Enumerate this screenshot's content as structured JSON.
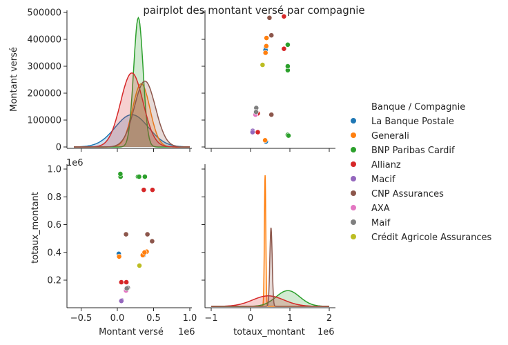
{
  "chart_data": {
    "type": "scatter",
    "title": "pairplot des montant versé par compagnie",
    "variables": [
      "Montant versé",
      "totaux_montant"
    ],
    "offset_label": "1e6",
    "legend": {
      "title": "Banque / Compagnie",
      "placement": "right"
    },
    "ticks": {
      "montant_x": [
        "−0.5",
        "0.0",
        "0.5",
        "1.0"
      ],
      "montant_y": [
        "0",
        "100000",
        "200000",
        "300000",
        "400000",
        "500000"
      ],
      "totaux_x": [
        "−1",
        "0",
        "1",
        "2"
      ],
      "totaux_y": [
        "0.2",
        "0.4",
        "0.6",
        "0.8",
        "1.0"
      ]
    },
    "series": [
      {
        "name": "La Banque Postale",
        "color": "#1f77b4",
        "points": [
          [
            20000,
            390000
          ],
          [
            370000,
            390000
          ],
          [
            360000,
            380000
          ]
        ],
        "kde": {
          "mu": 200000,
          "sigma": 230000,
          "peak": 120000
        }
      },
      {
        "name": "Generali",
        "color": "#ff7f0e",
        "points": [
          [
            25000,
            370000
          ],
          [
            405000,
            405000
          ],
          [
            350000,
            380000
          ],
          [
            375000,
            400000
          ]
        ],
        "kde": {
          "mu": 330000,
          "sigma": 120000,
          "peak": 235000
        },
        "diag_kde": {
          "mu": 370000,
          "sigma": 18000,
          "peak": 1.0
        }
      },
      {
        "name": "BNP Paribas Cardif",
        "color": "#2ca02c",
        "points": [
          [
            45000,
            945000
          ],
          [
            285000,
            945000
          ],
          [
            300000,
            945000
          ],
          [
            380000,
            945000
          ],
          [
            42000,
            965000
          ]
        ],
        "kde": {
          "mu": 290000,
          "sigma": 65000,
          "peak": 480000
        },
        "diag_kde": {
          "mu": 950000,
          "sigma": 300000,
          "peak": 0.12
        }
      },
      {
        "name": "Allianz",
        "color": "#d62728",
        "points": [
          [
            55000,
            185000
          ],
          [
            125000,
            185000
          ],
          [
            365000,
            850000
          ],
          [
            485000,
            850000
          ]
        ],
        "kde": {
          "mu": 200000,
          "sigma": 155000,
          "peak": 275000
        },
        "diag_kde": {
          "mu": 450000,
          "sigma": 400000,
          "peak": 0.08
        }
      },
      {
        "name": "Macif",
        "color": "#9467bd",
        "points": [
          [
            60000,
            55000
          ],
          [
            55000,
            50000
          ]
        ],
        "kde": null
      },
      {
        "name": "CNP Assurances",
        "color": "#8c564b",
        "points": [
          [
            120000,
            530000
          ],
          [
            480000,
            480000
          ],
          [
            415000,
            530000
          ]
        ],
        "kde": {
          "mu": 380000,
          "sigma": 145000,
          "peak": 245000
        },
        "diag_kde": {
          "mu": 520000,
          "sigma": 30000,
          "peak": 0.6
        }
      },
      {
        "name": "AXA",
        "color": "#e377c2",
        "points": [
          [
            120000,
            125000
          ]
        ],
        "kde": null
      },
      {
        "name": "Maif",
        "color": "#7f7f7f",
        "points": [
          [
            145000,
            145000
          ],
          [
            130000,
            140000
          ]
        ],
        "kde": null
      },
      {
        "name": "Crédit Agricole Assurances",
        "color": "#bcbd22",
        "points": [
          [
            305000,
            305000
          ]
        ],
        "kde": null
      }
    ]
  }
}
